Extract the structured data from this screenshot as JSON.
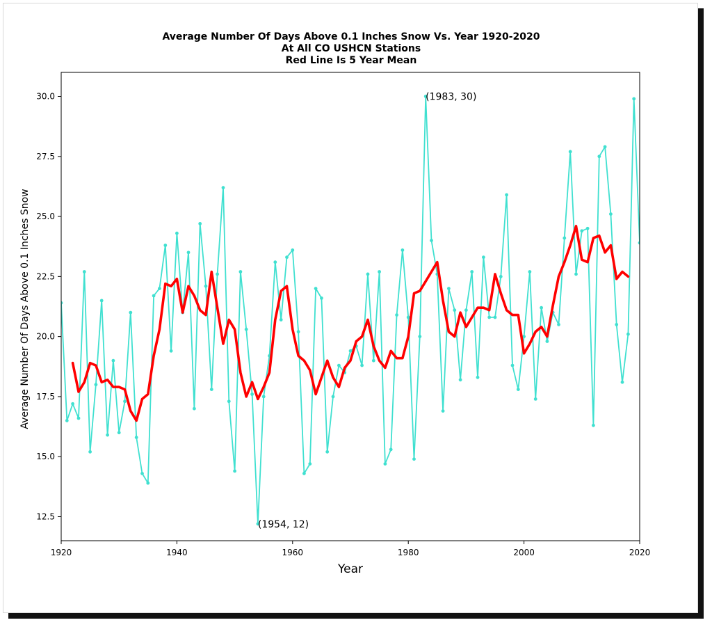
{
  "chart_data": {
    "type": "line",
    "title": [
      "Average Number Of Days Above 0.1 Inches Snow Vs. Year 1920-2020",
      "At All CO USHCN Stations",
      "Red Line Is 5 Year Mean"
    ],
    "xlabel": "Year",
    "ylabel": "Average Number Of Days Above 0.1 Inches Snow",
    "xlim": [
      1920,
      2020
    ],
    "ylim": [
      11.5,
      31.0
    ],
    "x_ticks": [
      1920,
      1940,
      1960,
      1980,
      2000,
      2020
    ],
    "y_ticks": [
      12.5,
      15.0,
      17.5,
      20.0,
      22.5,
      25.0,
      27.5,
      30.0
    ],
    "x_tick_labels": [
      "1920",
      "1940",
      "1960",
      "1980",
      "2000",
      "2020"
    ],
    "y_tick_labels": [
      "12.5",
      "15.0",
      "17.5",
      "20.0",
      "22.5",
      "25.0",
      "27.5",
      "30.0"
    ],
    "grid": false,
    "series": [
      {
        "color": "#40e0d0",
        "markers": true,
        "x": [
          1920,
          1921,
          1922,
          1923,
          1924,
          1925,
          1926,
          1927,
          1928,
          1929,
          1930,
          1931,
          1932,
          1933,
          1934,
          1935,
          1936,
          1937,
          1938,
          1939,
          1940,
          1941,
          1942,
          1943,
          1944,
          1945,
          1946,
          1947,
          1948,
          1949,
          1950,
          1951,
          1952,
          1953,
          1954,
          1955,
          1956,
          1957,
          1958,
          1959,
          1960,
          1961,
          1962,
          1963,
          1964,
          1965,
          1966,
          1967,
          1968,
          1969,
          1970,
          1971,
          1972,
          1973,
          1974,
          1975,
          1976,
          1977,
          1978,
          1979,
          1980,
          1981,
          1982,
          1983,
          1984,
          1985,
          1986,
          1987,
          1988,
          1989,
          1990,
          1991,
          1992,
          1993,
          1994,
          1995,
          1996,
          1997,
          1998,
          1999,
          2000,
          2001,
          2002,
          2003,
          2004,
          2005,
          2006,
          2007,
          2008,
          2009,
          2010,
          2011,
          2012,
          2013,
          2014,
          2015,
          2016,
          2017,
          2018,
          2019,
          2020
        ],
        "y": [
          21.4,
          16.5,
          17.2,
          16.6,
          22.7,
          15.2,
          18.0,
          21.5,
          15.9,
          19.0,
          16.0,
          17.3,
          21.0,
          15.8,
          14.3,
          13.9,
          21.7,
          22.0,
          23.8,
          19.4,
          24.3,
          21.0,
          23.5,
          17.0,
          24.7,
          22.1,
          17.8,
          22.6,
          26.2,
          17.3,
          14.4,
          22.7,
          20.3,
          17.6,
          12.2,
          17.5,
          19.2,
          23.1,
          20.7,
          23.3,
          23.6,
          20.2,
          14.3,
          14.7,
          22.0,
          21.6,
          15.2,
          17.5,
          18.8,
          18.5,
          19.4,
          19.6,
          18.8,
          22.6,
          19.0,
          22.7,
          14.7,
          15.3,
          20.9,
          23.6,
          20.8,
          14.9,
          20.0,
          30.0,
          24.0,
          22.6,
          16.9,
          22.0,
          21.1,
          18.2,
          21.1,
          22.7,
          18.3,
          23.3,
          20.8,
          20.8,
          22.5,
          25.9,
          18.8,
          17.8,
          20.0,
          22.7,
          17.4,
          21.2,
          19.8,
          21.0,
          20.5,
          24.1,
          27.7,
          22.6,
          24.4,
          24.5,
          16.3,
          27.5,
          27.9,
          25.1,
          20.5,
          18.1,
          20.1,
          29.9,
          23.9
        ]
      },
      {
        "name": "",
        "color": "#ff0000",
        "markers": false,
        "x": [
          1922,
          1923,
          1924,
          1925,
          1926,
          1927,
          1928,
          1929,
          1930,
          1931,
          1932,
          1933,
          1934,
          1935,
          1936,
          1937,
          1938,
          1939,
          1940,
          1941,
          1942,
          1943,
          1944,
          1945,
          1946,
          1947,
          1948,
          1949,
          1950,
          1951,
          1952,
          1953,
          1954,
          1955,
          1956,
          1957,
          1958,
          1959,
          1960,
          1961,
          1962,
          1963,
          1964,
          1965,
          1966,
          1967,
          1968,
          1969,
          1970,
          1971,
          1972,
          1973,
          1974,
          1975,
          1976,
          1977,
          1978,
          1979,
          1980,
          1981,
          1982,
          1983,
          1984,
          1985,
          1986,
          1987,
          1988,
          1989,
          1990,
          1991,
          1992,
          1993,
          1994,
          1995,
          1996,
          1997,
          1998,
          1999,
          2000,
          2001,
          2002,
          2003,
          2004,
          2005,
          2006,
          2007,
          2008,
          2009,
          2010,
          2011,
          2012,
          2013,
          2014,
          2015,
          2016,
          2017,
          2018
        ],
        "y": [
          18.9,
          17.7,
          18.1,
          18.9,
          18.8,
          18.1,
          18.2,
          17.9,
          17.9,
          17.8,
          16.9,
          16.5,
          17.4,
          17.6,
          19.2,
          20.3,
          22.2,
          22.1,
          22.4,
          21.0,
          22.1,
          21.7,
          21.1,
          20.9,
          22.7,
          21.2,
          19.7,
          20.7,
          20.3,
          18.5,
          17.5,
          18.1,
          17.4,
          17.9,
          18.5,
          20.7,
          21.9,
          22.1,
          20.3,
          19.2,
          19.0,
          18.6,
          17.6,
          18.3,
          19.0,
          18.3,
          17.9,
          18.7,
          19.0,
          19.8,
          20.0,
          20.7,
          19.6,
          19.0,
          18.7,
          19.4,
          19.1,
          19.1,
          20.0,
          21.8,
          21.9,
          22.3,
          22.7,
          23.1,
          21.5,
          20.2,
          20.0,
          21.0,
          20.4,
          20.8,
          21.2,
          21.2,
          21.1,
          22.6,
          21.8,
          21.1,
          20.9,
          20.9,
          19.3,
          19.7,
          20.2,
          20.4,
          20.0,
          21.3,
          22.5,
          23.1,
          23.8,
          24.6,
          23.2,
          23.1,
          24.1,
          24.2,
          23.5,
          23.8,
          22.4,
          22.7,
          22.5
        ]
      }
    ],
    "annotations": [
      {
        "text": "(1983, 30)",
        "x": 1983,
        "y": 30.0
      },
      {
        "text": "(1954, 12)",
        "x": 1954,
        "y": 12.2
      }
    ]
  }
}
